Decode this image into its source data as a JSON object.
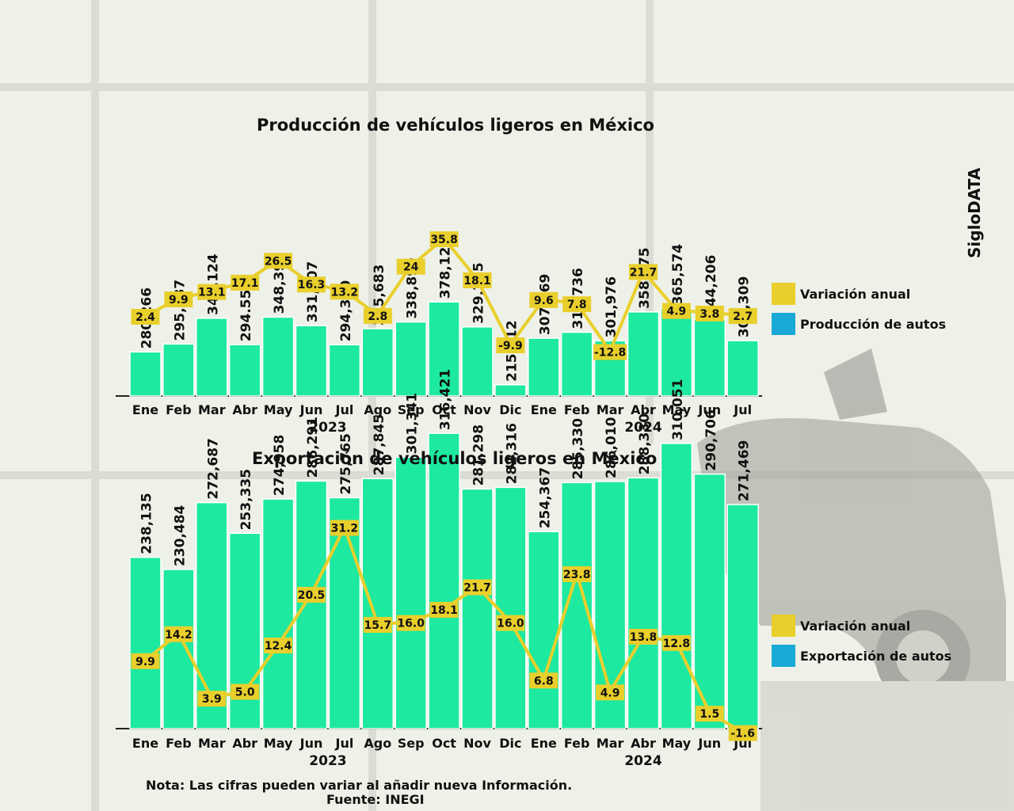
{
  "brand": "SigloDATA",
  "colors": {
    "bar": "#1de9a0",
    "line": "#e9cf2b",
    "legend_line": "#e9cf2b",
    "legend_bar": "#18a9d6"
  },
  "note": "Nota: Las cifras pueden variar al añadir nueva Información.",
  "source": "Fuente: INEGI",
  "chart_data": [
    {
      "type": "bar",
      "title": "Producción de vehículos ligeros en México",
      "categories": [
        "Ene",
        "Feb",
        "Mar",
        "Abr",
        "May",
        "Jun",
        "Jul",
        "Ago",
        "Sep",
        "Oct",
        "Nov",
        "Dic",
        "Ene",
        "Feb",
        "Mar",
        "Abr",
        "May",
        "Jun",
        "Jul"
      ],
      "year_labels": [
        "2023",
        "2024"
      ],
      "series": [
        {
          "name": "Producción de autos",
          "kind": "bar",
          "values": [
            280266,
            295787,
            346124,
            294550,
            348399,
            331707,
            294350,
            325683,
            338899,
            378129,
            329245,
            215912,
            307069,
            318736,
            301976,
            358575,
            365574,
            344206,
            302309
          ],
          "labels": [
            "280,266",
            "295,787",
            "346,124",
            "294.550",
            "348,399",
            "331,707",
            "294,350",
            "325,683",
            "338,899",
            "378,129",
            "329,245",
            "215,912",
            "307,069",
            "318,736",
            "301,976",
            "358,575",
            "365,574",
            "344,206",
            "302,309"
          ]
        },
        {
          "name": "Variación anual",
          "kind": "line",
          "values": [
            2.4,
            9.9,
            13.1,
            17.1,
            26.5,
            16.3,
            13.2,
            2.8,
            24,
            35.8,
            18.1,
            -9.9,
            9.6,
            7.8,
            -12.8,
            21.7,
            4.9,
            3.8,
            2.7
          ],
          "labels": [
            "2.4",
            "9.9",
            "13.1",
            "17.1",
            "26.5",
            "16.3",
            "13.2",
            "2.8",
            "24",
            "35.8",
            "18.1",
            "-9.9",
            "9.6",
            "7.8",
            "-12.8",
            "21.7",
            "4.9",
            "3.8",
            "2.7"
          ]
        }
      ]
    },
    {
      "type": "bar",
      "title": "Exportación de vehículos ligeros en México",
      "categories": [
        "Ene",
        "Feb",
        "Mar",
        "Abr",
        "May",
        "Jun",
        "Jul",
        "Ago",
        "Sep",
        "Oct",
        "Nov",
        "Dic",
        "Ene",
        "Feb",
        "Mar",
        "Abr",
        "May",
        "Jun",
        "Jul"
      ],
      "year_labels": [
        "2023",
        "2024"
      ],
      "series": [
        {
          "name": "Exportación de autos",
          "kind": "bar",
          "values": [
            238135,
            230484,
            272687,
            253335,
            274958,
            286291,
            275765,
            287845,
            301341,
            316421,
            281298,
            282316,
            254367,
            285330,
            286010,
            288330,
            310051,
            290706,
            271469
          ],
          "labels": [
            "238,135",
            "230,484",
            "272,687",
            "253,335",
            "274,958",
            "286,291",
            "275,765",
            "287,845",
            "301,341",
            "316,421",
            "281,298",
            "282,316",
            "254,367",
            "285,330",
            "286,010",
            "288,330",
            "310,051",
            "290,706",
            "271,469"
          ]
        },
        {
          "name": "Variación anual",
          "kind": "line",
          "values": [
            9.9,
            14.2,
            3.9,
            5.0,
            12.4,
            20.5,
            31.2,
            15.7,
            16.0,
            18.1,
            21.7,
            16.0,
            6.8,
            23.8,
            4.9,
            13.8,
            12.8,
            1.5,
            -1.6
          ],
          "labels": [
            "9.9",
            "14.2",
            "3.9",
            "5.0",
            "12.4",
            "20.5",
            "31.2",
            "15.7",
            "16.0",
            "18.1",
            "21.7",
            "16.0",
            "6.8",
            "23.8",
            "4.9",
            "13.8",
            "12.8",
            "1.5",
            "-1.6"
          ]
        }
      ]
    }
  ]
}
